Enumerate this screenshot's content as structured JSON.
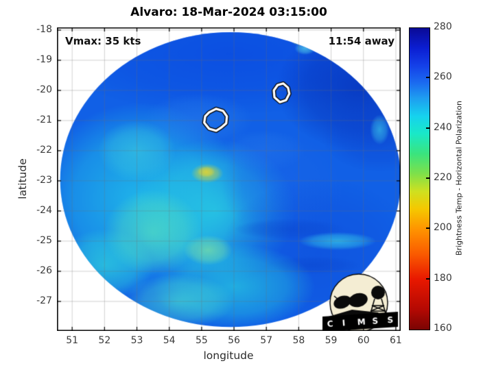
{
  "title": "Alvaro: 18-Mar-2024 03:15:00",
  "annotations": {
    "vmax": "Vmax: 35 kts",
    "eta": "11:54 away"
  },
  "axes": {
    "xlabel": "longitude",
    "ylabel": "latitude",
    "xticks": [
      51,
      52,
      53,
      54,
      55,
      56,
      57,
      58,
      59,
      60,
      61
    ],
    "yticks": [
      -18,
      -19,
      -20,
      -21,
      -22,
      -23,
      -24,
      -25,
      -26,
      -27
    ],
    "xlim": [
      50.53,
      61.15
    ],
    "ylim": [
      -27.98,
      -17.91
    ]
  },
  "colorbar": {
    "label": "Brightness Temp - Horizontal Polarization",
    "min": 160,
    "max": 280,
    "ticks": [
      280,
      260,
      240,
      220,
      200,
      180,
      160
    ],
    "stops": [
      {
        "v": 160,
        "c": "#7a0403"
      },
      {
        "v": 168,
        "c": "#b40903"
      },
      {
        "v": 180,
        "c": "#e81800"
      },
      {
        "v": 190,
        "c": "#fa5a00"
      },
      {
        "v": 200,
        "c": "#ff9400"
      },
      {
        "v": 208,
        "c": "#f5c800"
      },
      {
        "v": 215,
        "c": "#cfe020"
      },
      {
        "v": 222,
        "c": "#7ee04a"
      },
      {
        "v": 230,
        "c": "#3ae47e"
      },
      {
        "v": 238,
        "c": "#19e8c8"
      },
      {
        "v": 245,
        "c": "#16d2ee"
      },
      {
        "v": 252,
        "c": "#1e9ef0"
      },
      {
        "v": 258,
        "c": "#1b6cf0"
      },
      {
        "v": 265,
        "c": "#1440e8"
      },
      {
        "v": 272,
        "c": "#0b1ed2"
      },
      {
        "v": 280,
        "c": "#0a0a96"
      }
    ]
  },
  "logo": {
    "text": "CIMSS",
    "circle_color": "#f4edd3",
    "banner_color": "#000000",
    "text_color": "#ffffff",
    "ink_color": "#0a0a0a"
  },
  "chart_data": {
    "type": "heatmap",
    "title": "Alvaro: 18-Mar-2024 03:15:00",
    "storm_name": "Alvaro",
    "datetime": "18-Mar-2024 03:15:00",
    "vmax_kts": 35,
    "overpass_offset": "11:54 away",
    "xlabel": "longitude",
    "ylabel": "latitude",
    "xlim": [
      50.53,
      61.15
    ],
    "ylim": [
      -27.98,
      -17.91
    ],
    "grid": true,
    "colormap": "reversed-jet (high=dark blue, low=dark red)",
    "value_label": "Brightness Temp - Horizontal Polarization",
    "value_range": [
      160,
      280
    ],
    "swath": {
      "center_lon": 55.89,
      "center_lat": -22.96,
      "rx_deg": 5.26,
      "ry_deg": 4.89,
      "base_color": "#1160e6"
    },
    "features": [
      {
        "lon": 55.9,
        "lat": -18.8,
        "rx": 5.5,
        "ry": 2.0,
        "c": "#0a4ae0",
        "a": 0.75
      },
      {
        "lon": 59.9,
        "lat": -19.9,
        "rx": 2.6,
        "ry": 2.1,
        "c": "#0733bb",
        "a": 0.8
      },
      {
        "lon": 60.5,
        "lat": -21.5,
        "rx": 1.8,
        "ry": 1.2,
        "c": "#0c43cf",
        "a": 0.55
      },
      {
        "lon": 53.1,
        "lat": -23.6,
        "rx": 3.2,
        "ry": 3.2,
        "c": "#22c3ea",
        "a": 0.85
      },
      {
        "lon": 55.4,
        "lat": -24.0,
        "rx": 2.5,
        "ry": 2.4,
        "c": "#2ad0e2",
        "a": 0.8
      },
      {
        "lon": 52.0,
        "lat": -25.8,
        "rx": 1.5,
        "ry": 1.2,
        "c": "#2fd4dc",
        "a": 0.7
      },
      {
        "lon": 53.5,
        "lat": -24.7,
        "rx": 1.5,
        "ry": 1.4,
        "c": "#55dfc0",
        "a": 0.7
      },
      {
        "lon": 53.0,
        "lat": -22.0,
        "rx": 1.2,
        "ry": 1.0,
        "c": "#3ecede",
        "a": 0.55
      },
      {
        "lon": 54.9,
        "lat": -21.0,
        "rx": 1.7,
        "ry": 0.9,
        "c": "#2f86ec",
        "a": 0.4
      },
      {
        "lon": 56.9,
        "lat": -22.0,
        "rx": 1.3,
        "ry": 0.7,
        "c": "#2f86ec",
        "a": 0.35
      },
      {
        "lon": 57.5,
        "lat": -23.1,
        "rx": 1.9,
        "ry": 1.8,
        "c": "#1a66e8",
        "a": 0.55
      },
      {
        "lon": 58.6,
        "lat": -25.4,
        "rx": 3.0,
        "ry": 2.5,
        "c": "#0f50dd",
        "a": 0.65
      },
      {
        "lon": 57.7,
        "lat": -24.6,
        "rx": 1.7,
        "ry": 0.35,
        "c": "#0a43cc",
        "a": 0.45
      },
      {
        "lon": 58.4,
        "lat": -25.8,
        "rx": 1.5,
        "ry": 0.3,
        "c": "#0a43cc",
        "a": 0.45
      },
      {
        "lon": 59.2,
        "lat": -25.0,
        "rx": 1.2,
        "ry": 0.3,
        "c": "#35c8e8",
        "a": 0.75
      },
      {
        "lon": 56.0,
        "lat": -26.5,
        "rx": 2.5,
        "ry": 1.4,
        "c": "#28cfe0",
        "a": 0.7
      },
      {
        "lon": 54.3,
        "lat": -27.0,
        "rx": 1.7,
        "ry": 0.9,
        "c": "#49dcd1",
        "a": 0.65
      },
      {
        "lon": 55.2,
        "lat": -25.3,
        "rx": 0.75,
        "ry": 0.5,
        "c": "#7fe3a2",
        "a": 0.7
      },
      {
        "lon": 55.17,
        "lat": -22.75,
        "rx": 0.5,
        "ry": 0.32,
        "c": "#b8cf50",
        "a": 0.85
      },
      {
        "lon": 55.14,
        "lat": -22.7,
        "rx": 0.28,
        "ry": 0.18,
        "c": "#d8d23c",
        "a": 0.9
      },
      {
        "lon": 58.2,
        "lat": -18.6,
        "rx": 0.33,
        "ry": 0.22,
        "c": "#4fc8e8",
        "a": 0.8
      },
      {
        "lon": 58.0,
        "lat": -18.35,
        "rx": 0.24,
        "ry": 0.15,
        "c": "#b8e048",
        "a": 0.95
      },
      {
        "lon": 60.5,
        "lat": -21.3,
        "rx": 0.3,
        "ry": 0.5,
        "c": "#38c0e8",
        "a": 0.7
      }
    ],
    "contours": [
      {
        "points": [
          [
            55.11,
            -20.86
          ],
          [
            55.23,
            -20.73
          ],
          [
            55.45,
            -20.61
          ],
          [
            55.66,
            -20.68
          ],
          [
            55.78,
            -20.86
          ],
          [
            55.76,
            -21.09
          ],
          [
            55.61,
            -21.23
          ],
          [
            55.45,
            -21.34
          ],
          [
            55.23,
            -21.27
          ],
          [
            55.08,
            -21.07
          ]
        ]
      },
      {
        "points": [
          [
            57.35,
            -19.82
          ],
          [
            57.52,
            -19.77
          ],
          [
            57.67,
            -19.91
          ],
          [
            57.71,
            -20.11
          ],
          [
            57.61,
            -20.32
          ],
          [
            57.42,
            -20.39
          ],
          [
            57.25,
            -20.23
          ],
          [
            57.23,
            -20.0
          ]
        ]
      }
    ]
  }
}
